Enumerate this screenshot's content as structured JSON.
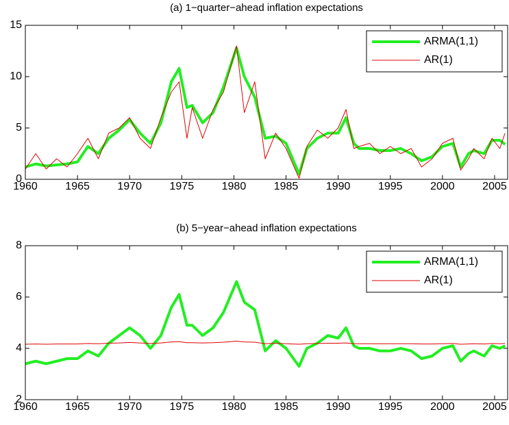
{
  "chart_data": [
    {
      "type": "line",
      "title": "(a) 1−quarter−ahead inflation expectations",
      "x": [
        1960,
        1961,
        1962,
        1963,
        1964,
        1965,
        1966,
        1967,
        1968,
        1969,
        1970,
        1971,
        1972,
        1973,
        1974,
        1974.75,
        1975.5,
        1976,
        1977,
        1978,
        1979,
        1980.25,
        1981,
        1982,
        1983,
        1984,
        1985,
        1986.25,
        1987,
        1988,
        1989,
        1990,
        1990.75,
        1991.5,
        1992,
        1993,
        1994,
        1995,
        1996,
        1997,
        1998,
        1999,
        2000,
        2001,
        2001.75,
        2002.5,
        2003,
        2004,
        2004.75,
        2005.5,
        2006
      ],
      "series": [
        {
          "name": "ARMA(1,1)",
          "color": "#22ee22",
          "values": [
            1.2,
            1.5,
            1.3,
            1.4,
            1.5,
            1.7,
            3.2,
            2.5,
            4.0,
            4.8,
            5.8,
            4.5,
            3.5,
            5.5,
            9.5,
            10.8,
            7.0,
            7.2,
            5.5,
            6.5,
            9.0,
            12.8,
            10.0,
            8.0,
            4.0,
            4.2,
            3.5,
            0.5,
            3.0,
            4.0,
            4.5,
            4.5,
            6.0,
            3.5,
            3.0,
            3.0,
            2.8,
            2.8,
            3.0,
            2.5,
            1.8,
            2.2,
            3.2,
            3.5,
            1.2,
            2.5,
            2.8,
            2.5,
            3.8,
            3.8,
            3.4
          ]
        },
        {
          "name": "AR(1)",
          "color": "#e00000",
          "values": [
            1.0,
            2.5,
            1.0,
            2.0,
            1.2,
            2.5,
            4.0,
            2.0,
            4.5,
            5.0,
            6.0,
            4.0,
            3.0,
            6.0,
            8.5,
            9.5,
            4.0,
            7.0,
            4.0,
            6.8,
            8.5,
            13.0,
            6.5,
            9.5,
            2.0,
            4.5,
            3.0,
            0.1,
            3.2,
            4.8,
            4.0,
            5.0,
            6.8,
            3.0,
            3.2,
            3.5,
            2.5,
            3.2,
            2.5,
            3.0,
            1.2,
            2.0,
            3.5,
            4.0,
            0.9,
            2.0,
            3.0,
            2.0,
            4.0,
            3.0,
            4.5
          ]
        }
      ],
      "xlim": [
        1960,
        2006.25
      ],
      "xticks": [
        1960,
        1965,
        1970,
        1975,
        1980,
        1985,
        1990,
        1995,
        2000,
        2005
      ],
      "ylim": [
        0,
        15
      ],
      "yticks": [
        0,
        5,
        10,
        15
      ],
      "legend": "upper right"
    },
    {
      "type": "line",
      "title": "(b) 5−year−ahead inflation expectations",
      "x": [
        1960,
        1961,
        1962,
        1963,
        1964,
        1965,
        1966,
        1967,
        1968,
        1969,
        1970,
        1971,
        1972,
        1973,
        1974,
        1974.75,
        1975.5,
        1976,
        1977,
        1978,
        1979,
        1980.25,
        1981,
        1982,
        1983,
        1984,
        1985,
        1986.25,
        1987,
        1988,
        1989,
        1990,
        1990.75,
        1991.5,
        1992,
        1993,
        1994,
        1995,
        1996,
        1997,
        1998,
        1999,
        2000,
        2001,
        2001.75,
        2002.5,
        2003,
        2004,
        2004.75,
        2005.5,
        2006
      ],
      "series": [
        {
          "name": "ARMA(1,1)",
          "color": "#22ee22",
          "values": [
            3.4,
            3.5,
            3.4,
            3.5,
            3.6,
            3.6,
            3.9,
            3.7,
            4.2,
            4.5,
            4.8,
            4.5,
            4.0,
            4.5,
            5.6,
            6.1,
            4.9,
            4.9,
            4.5,
            4.8,
            5.4,
            6.6,
            5.8,
            5.5,
            3.9,
            4.3,
            4.0,
            3.3,
            4.0,
            4.2,
            4.5,
            4.4,
            4.8,
            4.1,
            4.0,
            4.0,
            3.9,
            3.9,
            4.0,
            3.9,
            3.6,
            3.7,
            4.0,
            4.1,
            3.5,
            3.8,
            3.9,
            3.7,
            4.1,
            4.0,
            4.1
          ]
        },
        {
          "name": "AR(1)",
          "color": "#e00000",
          "values": [
            4.16,
            4.17,
            4.16,
            4.17,
            4.17,
            4.17,
            4.19,
            4.18,
            4.2,
            4.21,
            4.23,
            4.21,
            4.19,
            4.21,
            4.25,
            4.26,
            4.22,
            4.22,
            4.21,
            4.22,
            4.24,
            4.28,
            4.25,
            4.24,
            4.18,
            4.2,
            4.18,
            4.16,
            4.18,
            4.19,
            4.2,
            4.2,
            4.21,
            4.18,
            4.18,
            4.18,
            4.18,
            4.18,
            4.18,
            4.18,
            4.17,
            4.17,
            4.18,
            4.19,
            4.16,
            4.17,
            4.18,
            4.17,
            4.19,
            4.18,
            4.19
          ]
        }
      ],
      "xlim": [
        1960,
        2006.25
      ],
      "xticks": [
        1960,
        1965,
        1970,
        1975,
        1980,
        1985,
        1990,
        1995,
        2000,
        2005
      ],
      "ylim": [
        2,
        8
      ],
      "yticks": [
        2,
        4,
        6,
        8
      ],
      "legend": "upper right"
    }
  ]
}
